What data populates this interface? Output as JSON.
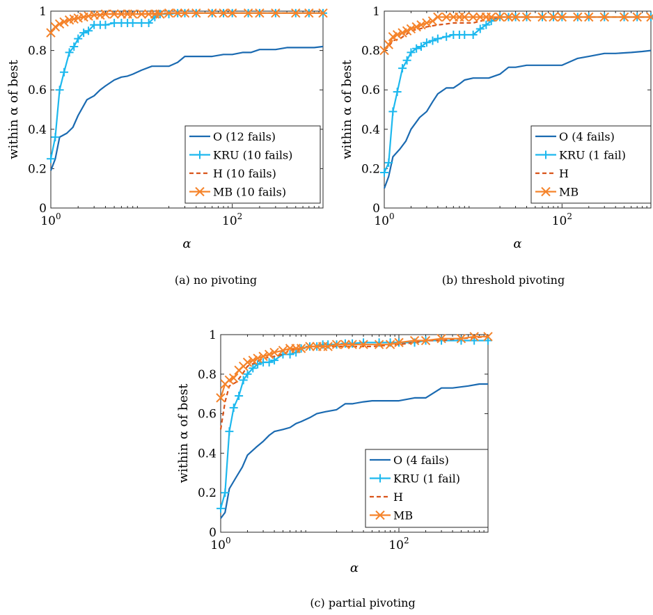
{
  "colors": {
    "O": "#1a6ab1",
    "KRU": "#1cb8ee",
    "H": "#d9541a",
    "MB": "#f5832a"
  },
  "chart_data": [
    {
      "type": "line",
      "caption": "(a)  no pivoting",
      "xlabel": "α",
      "ylabel": "within α of best",
      "xscale": "log",
      "xlim": [
        1,
        1000
      ],
      "ylim": [
        0,
        1
      ],
      "xticks": [
        {
          "v": 1,
          "base": "10",
          "exp": "0"
        },
        {
          "v": 100,
          "base": "10",
          "exp": "2"
        }
      ],
      "yticks": [
        "0",
        "0.2",
        "0.4",
        "0.6",
        "0.8",
        "1"
      ],
      "legend_position": "lower-right",
      "series": [
        {
          "key": "O",
          "name": "O (12 fails)",
          "style": "solid",
          "marker": "none",
          "x": [
            1,
            1.12,
            1.25,
            1.5,
            1.75,
            2,
            2.5,
            3,
            3.5,
            4,
            5,
            6,
            7,
            8,
            10,
            13,
            16,
            20,
            25,
            30,
            40,
            60,
            80,
            100,
            130,
            160,
            200,
            300,
            400,
            600,
            800,
            1000
          ],
          "y": [
            0.19,
            0.25,
            0.36,
            0.38,
            0.41,
            0.47,
            0.55,
            0.57,
            0.6,
            0.62,
            0.65,
            0.665,
            0.67,
            0.68,
            0.7,
            0.72,
            0.72,
            0.72,
            0.74,
            0.77,
            0.77,
            0.77,
            0.78,
            0.78,
            0.79,
            0.79,
            0.805,
            0.805,
            0.815,
            0.815,
            0.815,
            0.82
          ]
        },
        {
          "key": "KRU",
          "name": "KRU (10 fails)",
          "style": "solid",
          "marker": "plus",
          "x": [
            1,
            1.12,
            1.25,
            1.4,
            1.6,
            1.8,
            2,
            2.3,
            2.6,
            3,
            3.5,
            4,
            5,
            6,
            7,
            8,
            10,
            12,
            14,
            16,
            20,
            25,
            30,
            40,
            60,
            80,
            100,
            150,
            200,
            300,
            500,
            700,
            1000
          ],
          "y": [
            0.25,
            0.36,
            0.6,
            0.69,
            0.79,
            0.82,
            0.86,
            0.89,
            0.9,
            0.93,
            0.93,
            0.93,
            0.94,
            0.94,
            0.94,
            0.94,
            0.94,
            0.94,
            0.97,
            0.985,
            0.985,
            0.99,
            0.99,
            0.99,
            0.99,
            0.99,
            0.99,
            0.99,
            0.99,
            0.99,
            0.99,
            0.99,
            0.99
          ]
        },
        {
          "key": "H",
          "name": "H (10 fails)",
          "style": "dashed",
          "marker": "none",
          "x": [
            1,
            1.12,
            1.25,
            1.4,
            1.6,
            1.8,
            2,
            2.5,
            3,
            4,
            5,
            7,
            10,
            20,
            50,
            100,
            200,
            500,
            1000
          ],
          "y": [
            0.89,
            0.92,
            0.935,
            0.945,
            0.955,
            0.96,
            0.965,
            0.975,
            0.98,
            0.985,
            0.985,
            0.985,
            0.985,
            0.99,
            0.99,
            0.99,
            0.99,
            0.99,
            0.99
          ]
        },
        {
          "key": "MB",
          "name": "MB (10 fails)",
          "style": "solid",
          "marker": "x",
          "x": [
            1,
            1.12,
            1.25,
            1.4,
            1.6,
            1.8,
            2,
            2.3,
            2.6,
            3,
            3.5,
            4,
            5,
            6,
            7,
            8,
            10,
            12,
            14,
            16,
            20,
            25,
            30,
            40,
            60,
            80,
            100,
            150,
            200,
            300,
            500,
            700,
            1000
          ],
          "y": [
            0.89,
            0.92,
            0.935,
            0.945,
            0.955,
            0.96,
            0.965,
            0.97,
            0.975,
            0.98,
            0.98,
            0.985,
            0.985,
            0.985,
            0.985,
            0.985,
            0.985,
            0.985,
            0.985,
            0.985,
            0.99,
            0.99,
            0.99,
            0.99,
            0.99,
            0.99,
            0.99,
            0.99,
            0.99,
            0.99,
            0.99,
            0.99,
            0.99
          ]
        }
      ]
    },
    {
      "type": "line",
      "caption": "(b)  threshold pivoting",
      "xlabel": "α",
      "ylabel": "within α of best",
      "xscale": "log",
      "xlim": [
        1,
        1000
      ],
      "ylim": [
        0,
        1
      ],
      "xticks": [
        {
          "v": 1,
          "base": "10",
          "exp": "0"
        },
        {
          "v": 100,
          "base": "10",
          "exp": "2"
        }
      ],
      "yticks": [
        "0",
        "0.2",
        "0.4",
        "0.6",
        "0.8",
        "1"
      ],
      "legend_position": "lower-right",
      "series": [
        {
          "key": "O",
          "name": "O (4 fails)",
          "style": "solid",
          "marker": "none",
          "x": [
            1,
            1.12,
            1.25,
            1.5,
            1.75,
            2,
            2.5,
            3,
            3.5,
            4,
            5,
            6,
            7,
            8,
            10,
            12,
            15,
            20,
            25,
            30,
            40,
            50,
            70,
            100,
            150,
            200,
            300,
            400,
            600,
            800,
            1000
          ],
          "y": [
            0.1,
            0.16,
            0.26,
            0.3,
            0.34,
            0.4,
            0.46,
            0.49,
            0.54,
            0.58,
            0.61,
            0.61,
            0.63,
            0.65,
            0.66,
            0.66,
            0.66,
            0.68,
            0.715,
            0.715,
            0.725,
            0.725,
            0.725,
            0.725,
            0.76,
            0.77,
            0.785,
            0.785,
            0.79,
            0.795,
            0.8
          ]
        },
        {
          "key": "KRU",
          "name": "KRU (1 fail)",
          "style": "solid",
          "marker": "plus",
          "x": [
            1,
            1.12,
            1.25,
            1.4,
            1.6,
            1.8,
            2,
            2.3,
            2.6,
            3,
            3.5,
            4,
            5,
            6,
            7,
            8,
            10,
            12,
            14,
            16,
            20,
            25,
            30,
            40,
            60,
            80,
            100,
            150,
            200,
            300,
            500,
            700,
            1000
          ],
          "y": [
            0.18,
            0.23,
            0.49,
            0.59,
            0.71,
            0.75,
            0.79,
            0.81,
            0.82,
            0.84,
            0.85,
            0.86,
            0.87,
            0.88,
            0.88,
            0.88,
            0.88,
            0.91,
            0.93,
            0.95,
            0.97,
            0.97,
            0.97,
            0.97,
            0.97,
            0.97,
            0.97,
            0.97,
            0.97,
            0.97,
            0.97,
            0.97,
            0.97
          ]
        },
        {
          "key": "H",
          "name": "H",
          "style": "dashed",
          "marker": "none",
          "x": [
            1,
            1.12,
            1.25,
            1.5,
            1.75,
            2,
            2.5,
            3,
            4,
            5,
            6,
            8,
            10,
            15,
            20,
            30,
            50,
            100,
            200,
            500,
            1000
          ],
          "y": [
            0.8,
            0.82,
            0.85,
            0.86,
            0.88,
            0.9,
            0.91,
            0.92,
            0.93,
            0.935,
            0.94,
            0.94,
            0.94,
            0.96,
            0.97,
            0.97,
            0.97,
            0.97,
            0.97,
            0.97,
            0.97
          ]
        },
        {
          "key": "MB",
          "name": "MB",
          "style": "solid",
          "marker": "x",
          "x": [
            1,
            1.12,
            1.25,
            1.4,
            1.6,
            1.8,
            2,
            2.3,
            2.6,
            3,
            3.5,
            4,
            5,
            6,
            7,
            8,
            10,
            12,
            14,
            16,
            20,
            25,
            30,
            40,
            60,
            80,
            100,
            150,
            200,
            300,
            500,
            700,
            1000
          ],
          "y": [
            0.8,
            0.83,
            0.87,
            0.88,
            0.89,
            0.9,
            0.91,
            0.92,
            0.93,
            0.94,
            0.95,
            0.97,
            0.97,
            0.97,
            0.97,
            0.97,
            0.97,
            0.97,
            0.97,
            0.97,
            0.97,
            0.97,
            0.97,
            0.97,
            0.97,
            0.97,
            0.97,
            0.97,
            0.97,
            0.97,
            0.97,
            0.97,
            0.97
          ]
        }
      ]
    },
    {
      "type": "line",
      "caption": "(c)  partial pivoting",
      "xlabel": "α",
      "ylabel": "within α of best",
      "xscale": "log",
      "xlim": [
        1,
        1000
      ],
      "ylim": [
        0,
        1
      ],
      "xticks": [
        {
          "v": 1,
          "base": "10",
          "exp": "0"
        },
        {
          "v": 100,
          "base": "10",
          "exp": "2"
        }
      ],
      "yticks": [
        "0",
        "0.2",
        "0.4",
        "0.6",
        "0.8",
        "1"
      ],
      "legend_position": "lower-right",
      "series": [
        {
          "key": "O",
          "name": "O (4 fails)",
          "style": "solid",
          "marker": "none",
          "x": [
            1,
            1.12,
            1.25,
            1.5,
            1.75,
            2,
            2.5,
            3,
            3.5,
            4,
            5,
            6,
            7,
            8,
            10,
            12,
            15,
            20,
            25,
            30,
            40,
            50,
            70,
            100,
            150,
            200,
            300,
            400,
            600,
            800,
            1000
          ],
          "y": [
            0.07,
            0.1,
            0.22,
            0.28,
            0.33,
            0.39,
            0.43,
            0.46,
            0.49,
            0.51,
            0.52,
            0.53,
            0.55,
            0.56,
            0.58,
            0.6,
            0.61,
            0.62,
            0.65,
            0.65,
            0.66,
            0.665,
            0.665,
            0.665,
            0.68,
            0.68,
            0.73,
            0.73,
            0.74,
            0.75,
            0.75
          ]
        },
        {
          "key": "KRU",
          "name": "KRU (1 fail)",
          "style": "solid",
          "marker": "plus",
          "x": [
            1,
            1.12,
            1.25,
            1.4,
            1.6,
            1.8,
            2,
            2.3,
            2.6,
            3,
            3.5,
            4,
            5,
            6,
            7,
            8,
            10,
            12,
            14,
            16,
            20,
            25,
            30,
            40,
            60,
            80,
            100,
            150,
            200,
            300,
            500,
            700,
            1000
          ],
          "y": [
            0.12,
            0.2,
            0.51,
            0.63,
            0.69,
            0.77,
            0.8,
            0.83,
            0.85,
            0.86,
            0.86,
            0.87,
            0.9,
            0.9,
            0.91,
            0.93,
            0.94,
            0.94,
            0.95,
            0.95,
            0.95,
            0.955,
            0.955,
            0.96,
            0.96,
            0.96,
            0.96,
            0.96,
            0.97,
            0.97,
            0.97,
            0.97,
            0.97
          ]
        },
        {
          "key": "H",
          "name": "H",
          "style": "dashed",
          "marker": "none",
          "x": [
            1,
            1.12,
            1.25,
            1.5,
            1.75,
            2,
            2.5,
            3,
            4,
            5,
            6,
            8,
            10,
            15,
            20,
            30,
            50,
            100,
            150,
            200,
            300,
            500,
            1000
          ],
          "y": [
            0.52,
            0.66,
            0.74,
            0.76,
            0.8,
            0.84,
            0.86,
            0.88,
            0.89,
            0.9,
            0.92,
            0.93,
            0.94,
            0.94,
            0.94,
            0.94,
            0.94,
            0.95,
            0.96,
            0.97,
            0.97,
            0.98,
            0.99
          ]
        },
        {
          "key": "MB",
          "name": "MB",
          "style": "solid",
          "marker": "x",
          "x": [
            1,
            1.12,
            1.25,
            1.4,
            1.6,
            1.8,
            2,
            2.3,
            2.6,
            3,
            3.5,
            4,
            5,
            6,
            7,
            8,
            10,
            12,
            14,
            16,
            20,
            25,
            30,
            40,
            60,
            80,
            100,
            150,
            200,
            300,
            500,
            700,
            1000
          ],
          "y": [
            0.68,
            0.75,
            0.77,
            0.78,
            0.82,
            0.84,
            0.86,
            0.87,
            0.88,
            0.89,
            0.9,
            0.91,
            0.92,
            0.93,
            0.93,
            0.93,
            0.94,
            0.94,
            0.94,
            0.94,
            0.95,
            0.95,
            0.95,
            0.95,
            0.95,
            0.95,
            0.96,
            0.97,
            0.97,
            0.98,
            0.98,
            0.99,
            0.99
          ]
        }
      ]
    }
  ]
}
